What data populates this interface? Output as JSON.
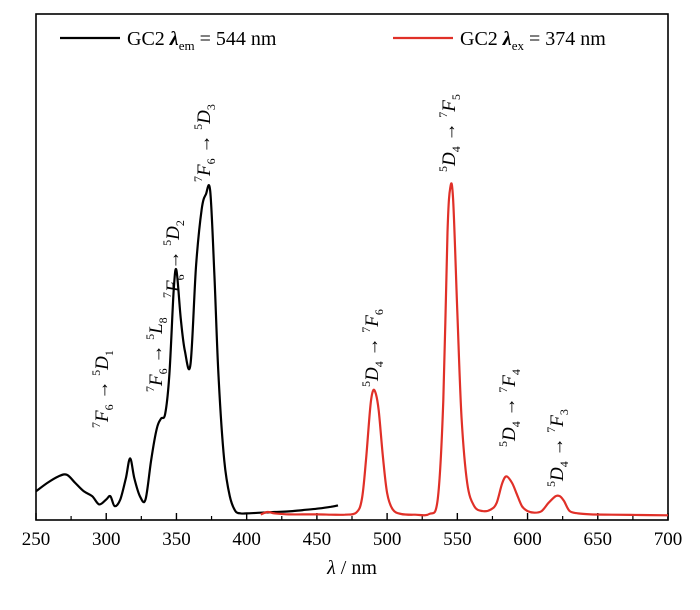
{
  "chart_data": {
    "type": "line",
    "title": "",
    "xlabel": "λ / nm",
    "ylabel": "",
    "xlim": [
      250,
      700
    ],
    "ylim": [
      0,
      1
    ],
    "grid": false,
    "legend_placement": "top",
    "x_ticks": [
      250,
      300,
      350,
      400,
      450,
      500,
      550,
      600,
      650,
      700
    ],
    "series": [
      {
        "name": "GC2 λem = 544 nm",
        "color": "#000000",
        "x": [
          250,
          258,
          266,
          272,
          278,
          284,
          290,
          295,
          300,
          303,
          306,
          310,
          314,
          317,
          320,
          324,
          328,
          332,
          336,
          339,
          342,
          345,
          348,
          350,
          353,
          356,
          360,
          364,
          368,
          371,
          374,
          377,
          380,
          384,
          388,
          392,
          396,
          400,
          410,
          420,
          430,
          440,
          450,
          460,
          465
        ],
        "y": [
          0.075,
          0.1,
          0.12,
          0.125,
          0.1,
          0.075,
          0.06,
          0.035,
          0.05,
          0.06,
          0.03,
          0.05,
          0.115,
          0.175,
          0.115,
          0.06,
          0.05,
          0.17,
          0.265,
          0.295,
          0.31,
          0.43,
          0.68,
          0.745,
          0.6,
          0.5,
          0.46,
          0.76,
          0.93,
          0.975,
          0.985,
          0.73,
          0.42,
          0.17,
          0.06,
          0.015,
          0.008,
          0.008,
          0.01,
          0.012,
          0.014,
          0.018,
          0.022,
          0.028,
          0.032
        ]
      },
      {
        "name": "GC2 λex = 374 nm",
        "color": "#e03028",
        "x": [
          410,
          415,
          420,
          430,
          440,
          450,
          460,
          470,
          478,
          482,
          485,
          488,
          490,
          492,
          494,
          497,
          500,
          504,
          510,
          520,
          530,
          536,
          540,
          543,
          545,
          547,
          550,
          553,
          557,
          562,
          568,
          574,
          578,
          582,
          585,
          589,
          592,
          596,
          600,
          605,
          610,
          615,
          620,
          623,
          626,
          630,
          636,
          645,
          660,
          680,
          700
        ],
        "y": [
          0.005,
          0.012,
          0.008,
          0.005,
          0.005,
          0.005,
          0.004,
          0.004,
          0.01,
          0.05,
          0.17,
          0.33,
          0.38,
          0.37,
          0.32,
          0.18,
          0.07,
          0.02,
          0.006,
          0.004,
          0.006,
          0.05,
          0.35,
          0.86,
          0.995,
          0.96,
          0.62,
          0.3,
          0.1,
          0.03,
          0.015,
          0.02,
          0.04,
          0.1,
          0.12,
          0.1,
          0.07,
          0.03,
          0.015,
          0.01,
          0.015,
          0.04,
          0.06,
          0.06,
          0.045,
          0.015,
          0.008,
          0.005,
          0.004,
          0.003,
          0.002
        ]
      }
    ],
    "legend": [
      {
        "label_main": "GC2",
        "lambda": "λ",
        "sub": "em",
        "value": " = 544 nm",
        "color": "#000000"
      },
      {
        "label_main": "GC2",
        "lambda": "λ",
        "sub": "ex",
        "value": " = 374 nm",
        "color": "#e03028"
      }
    ],
    "annotations": [
      {
        "x": 300,
        "y": 0.0,
        "text": "⁷F₆→⁵D₁",
        "sup1": "7",
        "base1": "F",
        "sub1": "6",
        "sup2": "5",
        "base2": "D",
        "sub2": "1"
      },
      {
        "x": 336,
        "y": 0.0,
        "text": "⁷F₆→⁵L₈",
        "sup1": "7",
        "base1": "F",
        "sub1": "6",
        "sup2": "5",
        "base2": "L",
        "sub2": "8"
      },
      {
        "x": 352,
        "y": 0.0,
        "text": "⁷F₆→⁵D₂",
        "sup1": "7",
        "base1": "F",
        "sub1": "6",
        "sup2": "5",
        "base2": "D",
        "sub2": "2"
      },
      {
        "x": 371,
        "y": 0.0,
        "text": "⁷F₆→⁵D₃",
        "sup1": "7",
        "base1": "F",
        "sub1": "6",
        "sup2": "5",
        "base2": "D",
        "sub2": "3"
      },
      {
        "x": 490,
        "y": 0.0,
        "text": "⁵D₄→⁷F₆",
        "sup1": "5",
        "base1": "D",
        "sub1": "4",
        "sup2": "7",
        "base2": "F",
        "sub2": "6"
      },
      {
        "x": 546,
        "y": 0.0,
        "text": "⁵D₄→⁷F₅",
        "sup1": "5",
        "base1": "D",
        "sub1": "4",
        "sup2": "7",
        "base2": "F",
        "sub2": "5"
      },
      {
        "x": 586,
        "y": 0.0,
        "text": "⁵D₄→⁷F₄",
        "sup1": "5",
        "base1": "D",
        "sub1": "4",
        "sup2": "7",
        "base2": "F",
        "sub2": "4"
      },
      {
        "x": 623,
        "y": 0.0,
        "text": "⁵D₄→⁷F₃",
        "sup1": "5",
        "base1": "D",
        "sub1": "4",
        "sup2": "7",
        "base2": "F",
        "sub2": "3"
      }
    ]
  }
}
